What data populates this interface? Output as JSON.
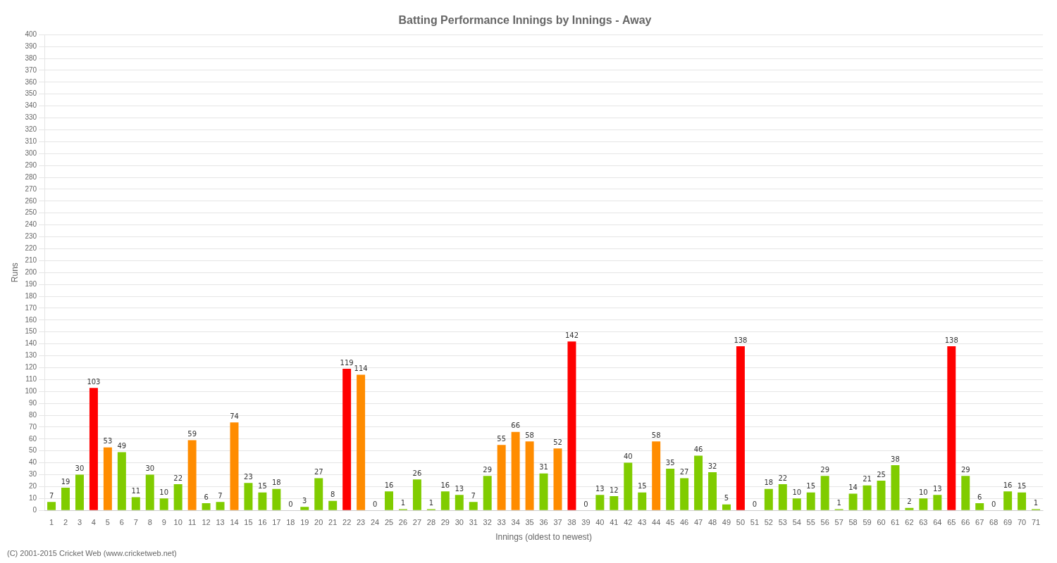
{
  "chart_data": {
    "type": "bar",
    "title": "Batting Performance Innings by Innings - Away",
    "x_label": "Innings (oldest to newest)",
    "y_label": "Runs",
    "annotations": [
      "(C) 2001-2015 Cricket Web (www.cricketweb.net)"
    ],
    "categories": [
      "1",
      "2",
      "3",
      "4",
      "5",
      "6",
      "7",
      "8",
      "9",
      "10",
      "11",
      "12",
      "13",
      "14",
      "15",
      "16",
      "17",
      "18",
      "19",
      "20",
      "21",
      "22",
      "23",
      "24",
      "25",
      "26",
      "27",
      "28",
      "29",
      "30",
      "31",
      "32",
      "33",
      "34",
      "35",
      "36",
      "37",
      "38",
      "39",
      "40",
      "41",
      "42",
      "43",
      "44",
      "45",
      "46",
      "47",
      "48",
      "49",
      "50",
      "51",
      "52",
      "53",
      "54",
      "55",
      "56",
      "57",
      "58",
      "59",
      "60",
      "61",
      "62",
      "63",
      "64",
      "65",
      "66",
      "67",
      "68",
      "69",
      "70",
      "71"
    ],
    "values": [
      7,
      19,
      30,
      103,
      53,
      49,
      11,
      30,
      10,
      22,
      59,
      6,
      7,
      74,
      23,
      15,
      18,
      0,
      3,
      27,
      8,
      119,
      114,
      0,
      16,
      1,
      26,
      1,
      16,
      13,
      7,
      29,
      55,
      66,
      58,
      31,
      52,
      142,
      0,
      13,
      12,
      40,
      15,
      58,
      35,
      27,
      46,
      32,
      5,
      138,
      0,
      18,
      22,
      10,
      15,
      29,
      1,
      14,
      21,
      25,
      38,
      2,
      10,
      13,
      138,
      29,
      6,
      0,
      16,
      15,
      1
    ],
    "colors": [
      "#80cc00",
      "#80cc00",
      "#80cc00",
      "#ff0000",
      "#ff8c00",
      "#80cc00",
      "#80cc00",
      "#80cc00",
      "#80cc00",
      "#80cc00",
      "#ff8c00",
      "#80cc00",
      "#80cc00",
      "#ff8c00",
      "#80cc00",
      "#80cc00",
      "#80cc00",
      "#80cc00",
      "#80cc00",
      "#80cc00",
      "#80cc00",
      "#ff0000",
      "#ff8c00",
      "#80cc00",
      "#80cc00",
      "#80cc00",
      "#80cc00",
      "#80cc00",
      "#80cc00",
      "#80cc00",
      "#80cc00",
      "#80cc00",
      "#ff8c00",
      "#ff8c00",
      "#ff8c00",
      "#80cc00",
      "#ff8c00",
      "#ff0000",
      "#80cc00",
      "#80cc00",
      "#80cc00",
      "#80cc00",
      "#80cc00",
      "#ff8c00",
      "#80cc00",
      "#80cc00",
      "#80cc00",
      "#80cc00",
      "#80cc00",
      "#ff0000",
      "#80cc00",
      "#80cc00",
      "#80cc00",
      "#80cc00",
      "#80cc00",
      "#80cc00",
      "#80cc00",
      "#80cc00",
      "#80cc00",
      "#80cc00",
      "#80cc00",
      "#80cc00",
      "#80cc00",
      "#80cc00",
      "#ff0000",
      "#80cc00",
      "#80cc00",
      "#80cc00",
      "#80cc00",
      "#80cc00",
      "#80cc00"
    ],
    "ylim": [
      0,
      400
    ],
    "yticks": [
      0,
      10,
      20,
      30,
      40,
      50,
      60,
      70,
      80,
      90,
      100,
      110,
      120,
      130,
      140,
      150,
      160,
      170,
      180,
      190,
      200,
      210,
      220,
      230,
      240,
      250,
      260,
      270,
      280,
      290,
      300,
      310,
      320,
      330,
      340,
      350,
      360,
      370,
      380,
      390,
      400
    ],
    "grid": true,
    "data_labels": true
  }
}
